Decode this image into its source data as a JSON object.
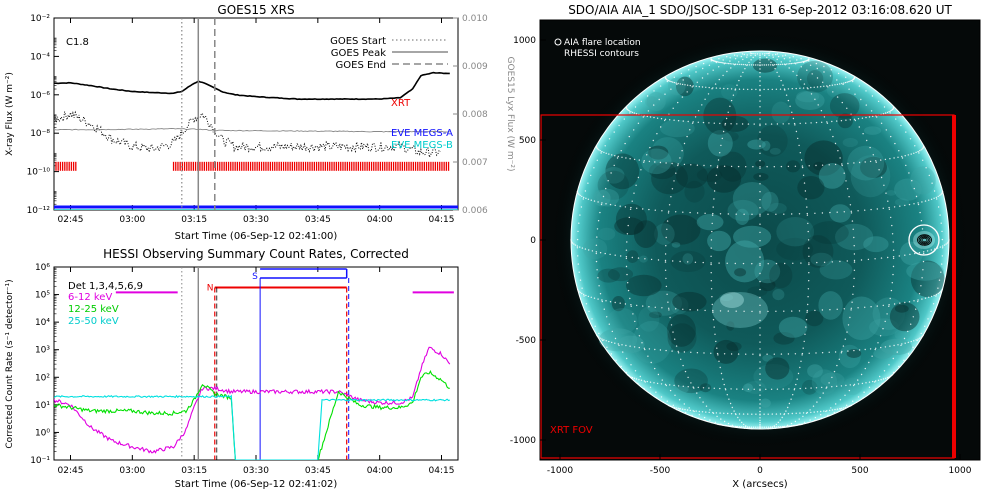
{
  "chart_data": [
    {
      "type": "line",
      "title": "GOES15 XRS",
      "xlabel": "Start Time (06-Sep-12 02:41:00)",
      "ylabel": "X-ray Flux (W m⁻²)",
      "ylabel_right": "GOES15 Lyx Flux (W m⁻²)",
      "y_scale": "log",
      "ylim": [
        1e-12,
        0.01
      ],
      "y_right_lim": [
        0.006,
        0.01
      ],
      "x_tick_labels": [
        "02:45",
        "03:00",
        "03:15",
        "03:30",
        "03:45",
        "04:00",
        "04:15"
      ],
      "y_tick_labels": [
        "10⁻¹²",
        "10⁻¹⁰",
        "10⁻⁸",
        "10⁻⁶",
        "10⁻⁴",
        "10⁻²"
      ],
      "y_right_tick_labels": [
        "0.006",
        "0.007",
        "0.008",
        "0.009",
        "0.010"
      ],
      "class_label": "C1.8",
      "legend": {
        "start": "GOES Start",
        "peak": "GOES Peak",
        "end": "GOES End"
      },
      "labels": {
        "xrt": "XRT",
        "eve_a": "EVE MEGS-A",
        "eve_b": "EVE MEGS-B"
      },
      "event_times": {
        "start": "03:12",
        "peak": "03:16",
        "end": "03:20"
      },
      "series": [
        {
          "name": "long",
          "color": "#000000",
          "x": [
            "02:41",
            "02:45",
            "02:50",
            "02:55",
            "03:00",
            "03:05",
            "03:10",
            "03:12",
            "03:15",
            "03:16",
            "03:17",
            "03:19",
            "03:22",
            "03:25",
            "03:30",
            "03:40",
            "03:50",
            "04:00",
            "04:05",
            "04:08",
            "04:10",
            "04:13",
            "04:17"
          ],
          "y": [
            4e-06,
            4.2e-06,
            3e-06,
            2e-06,
            1.5e-06,
            1.3e-06,
            1.2e-06,
            1.5e-06,
            4e-06,
            5e-06,
            4.5e-06,
            2.8e-06,
            1.4e-06,
            1e-06,
            8e-07,
            6e-07,
            6e-07,
            6e-07,
            7e-07,
            2e-06,
            1e-05,
            1.4e-05,
            1.3e-05
          ]
        },
        {
          "name": "short",
          "color": "#000000",
          "x": [
            "02:41",
            "02:45",
            "02:50",
            "02:55",
            "03:00",
            "03:05",
            "03:10",
            "03:13",
            "03:15",
            "03:17",
            "03:19",
            "03:22",
            "03:25",
            "03:30",
            "03:40",
            "03:50",
            "04:00",
            "04:05",
            "04:10",
            "04:15"
          ],
          "y": [
            5e-08,
            1e-07,
            3e-08,
            5e-09,
            2e-09,
            1.5e-09,
            3e-09,
            2e-08,
            6e-08,
            1e-07,
            3e-08,
            4e-09,
            2e-09,
            2e-09,
            2e-09,
            2e-09,
            2e-09,
            2e-09,
            1e-09,
            1e-09
          ]
        },
        {
          "name": "lyman",
          "color": "#888888",
          "x": [
            "02:41",
            "03:00",
            "03:10",
            "03:16",
            "03:20",
            "03:40",
            "04:00",
            "04:17"
          ],
          "y": [
            1.5e-08,
            1.6e-08,
            1.7e-08,
            1.6e-08,
            1.4e-08,
            1.3e-08,
            1.2e-08,
            1.2e-08
          ]
        }
      ]
    },
    {
      "type": "line",
      "title": "HESSI Observing Summary Count Rates, Corrected",
      "xlabel": "Start Time (06-Sep-12 02:41:02)",
      "ylabel": "Corrected Count Rate (s⁻¹ detector⁻¹)",
      "y_scale": "log",
      "ylim": [
        0.1,
        1000000.0
      ],
      "x_tick_labels": [
        "02:45",
        "03:00",
        "03:15",
        "03:30",
        "03:45",
        "04:00",
        "04:15"
      ],
      "y_tick_labels": [
        "10⁻¹",
        "10⁰",
        "10¹",
        "10²",
        "10³",
        "10⁴",
        "10⁵",
        "10⁶"
      ],
      "detectors": "Det 1,3,4,5,6,9",
      "markers": {
        "n": "N",
        "s": "S"
      },
      "series": [
        {
          "name": "6-12 keV",
          "color": "#e000e0",
          "x": [
            "02:41",
            "02:45",
            "02:50",
            "02:55",
            "03:00",
            "03:05",
            "03:10",
            "03:13",
            "03:15",
            "03:17",
            "03:20",
            "03:24",
            "03:45",
            "03:50",
            "03:55",
            "04:00",
            "04:05",
            "04:08",
            "04:10",
            "04:12",
            "04:15",
            "04:17"
          ],
          "y": [
            15,
            10,
            1.5,
            0.5,
            0.3,
            0.2,
            0.3,
            1.2,
            8,
            40,
            40,
            30,
            30,
            30,
            15,
            12,
            12,
            18,
            200,
            1200,
            700,
            300
          ]
        },
        {
          "name": "12-25 keV",
          "color": "#00e000",
          "x": [
            "02:41",
            "02:45",
            "02:50",
            "02:55",
            "03:00",
            "03:05",
            "03:10",
            "03:13",
            "03:15",
            "03:17",
            "03:20",
            "03:24",
            "03:25",
            "03:45",
            "03:50",
            "03:55",
            "04:00",
            "04:05",
            "04:08",
            "04:10",
            "04:12",
            "04:15",
            "04:17"
          ],
          "y": [
            10,
            8,
            6,
            6,
            6,
            5,
            5,
            6,
            15,
            60,
            25,
            18,
            0.1,
            0.1,
            30,
            10,
            8,
            8,
            12,
            100,
            150,
            80,
            40
          ]
        },
        {
          "name": "25-50 keV",
          "color": "#00e0e0",
          "x": [
            "02:41",
            "03:24",
            "03:25",
            "03:45",
            "03:46",
            "04:17"
          ],
          "y": [
            20,
            20,
            0.1,
            0.1,
            15,
            15
          ]
        }
      ]
    },
    {
      "type": "heatmap",
      "title": "SDO/AIA AIA_1 SDO/JSOC-SDP 131   6-Sep-2012 03:16:08.620 UT",
      "xlabel": "X (arcsecs)",
      "ylabel": "",
      "xlim": [
        -1100,
        1100
      ],
      "ylim": [
        -1100,
        1100
      ],
      "x_tick_labels": [
        "-1000",
        "-500",
        "0",
        "500",
        "1000"
      ],
      "y_tick_labels": [
        "-1000",
        "-500",
        "0",
        "500",
        "1000"
      ],
      "legend": [
        "AIA flare location",
        "RHESSI contours"
      ],
      "fov_label": "XRT FOV",
      "flare_location": [
        820,
        0
      ]
    }
  ]
}
